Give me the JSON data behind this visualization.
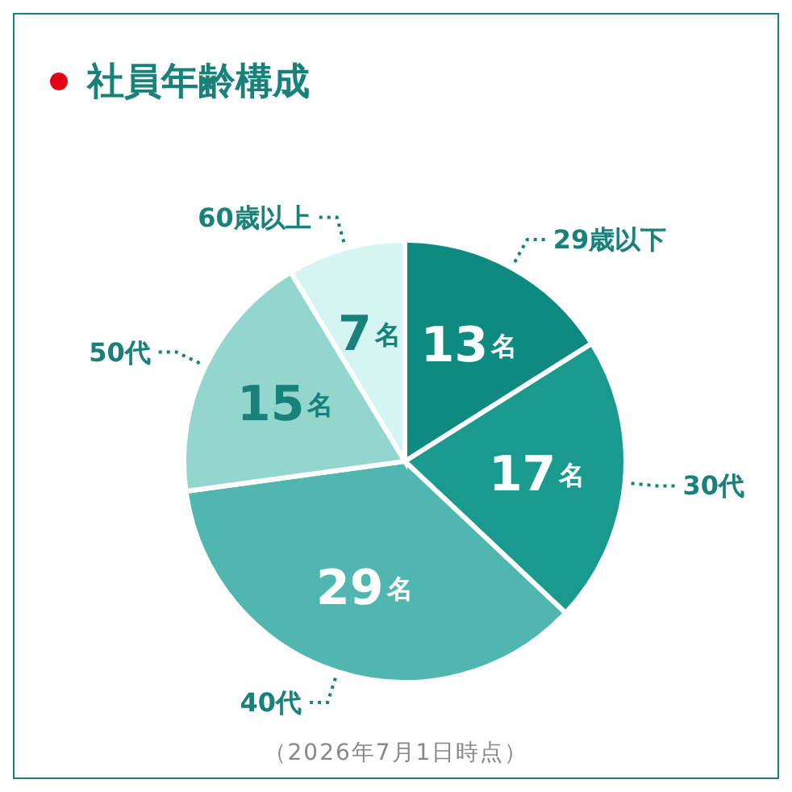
{
  "chart_data": {
    "type": "pie",
    "title": "社員年齢構成",
    "categories": [
      "29歳以下",
      "30代",
      "40代",
      "50代",
      "60歳以上"
    ],
    "values": [
      13,
      17,
      29,
      15,
      7
    ],
    "colors": [
      "#0f8a80",
      "#1a9a8f",
      "#4fb7af",
      "#92d6ce",
      "#d5f5f3"
    ],
    "value_labels": [
      "13名",
      "17名",
      "29名",
      "15名",
      "7名"
    ],
    "annotations": [
      "（2026年7月1日時点）"
    ]
  }
}
